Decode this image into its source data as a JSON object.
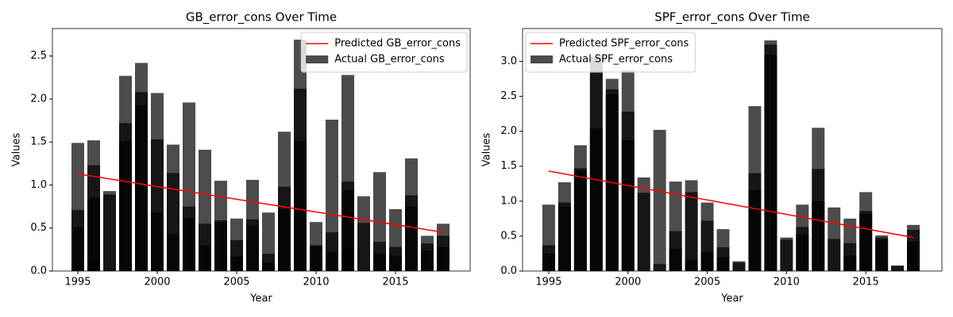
{
  "chart_data": [
    {
      "type": "bar",
      "title": "GB_error_cons Over Time",
      "x_label": "Year",
      "y_label": "Values",
      "xlim": [
        1993.4,
        2019.7
      ],
      "xticks": [
        1995,
        2000,
        2005,
        2010,
        2015
      ],
      "ylim": [
        0,
        2.82
      ],
      "yticks": [
        {
          "value": 0,
          "label": "0.0"
        },
        {
          "value": 0.5,
          "label": "0.5"
        },
        {
          "value": 1,
          "label": "1.0"
        },
        {
          "value": 1.5,
          "label": "1.5"
        },
        {
          "value": 2,
          "label": "2.0"
        },
        {
          "value": 2.5,
          "label": "2.5"
        }
      ],
      "legend": "upper right",
      "series": [
        {
          "name": "Predicted GB_error_cons",
          "type": "line",
          "color": "#ff0000",
          "x": [
            1995,
            2018
          ],
          "values": [
            1.13,
            0.45
          ]
        },
        {
          "name": "Actual GB_error_cons",
          "type": "bar",
          "color": "#000000",
          "opacity": 0.7,
          "x": [
            1995,
            1995,
            1995,
            1996,
            1996,
            1996,
            1996,
            1997,
            1997,
            1998,
            1998,
            1998,
            1999,
            1999,
            1999,
            2000,
            2000,
            2000,
            2001,
            2001,
            2001,
            2002,
            2002,
            2002,
            2003,
            2003,
            2003,
            2004,
            2004,
            2004,
            2005,
            2005,
            2005,
            2006,
            2006,
            2006,
            2007,
            2007,
            2007,
            2008,
            2008,
            2008,
            2009,
            2009,
            2009,
            2010,
            2010,
            2010,
            2011,
            2011,
            2011,
            2012,
            2012,
            2012,
            2012,
            2013,
            2013,
            2014,
            2014,
            2014,
            2015,
            2015,
            2015,
            2016,
            2016,
            2016,
            2017,
            2017,
            2017,
            2018,
            2018,
            2018
          ],
          "values": [
            1.49,
            0.71,
            0.51,
            1.52,
            1.23,
            0.85,
            0.11,
            0.93,
            0.89,
            2.27,
            1.72,
            1.51,
            2.42,
            2.08,
            1.93,
            2.07,
            1.53,
            0.68,
            1.47,
            1.14,
            0.43,
            1.96,
            0.75,
            0.62,
            1.41,
            0.55,
            0.3,
            1.05,
            0.59,
            0.57,
            0.61,
            0.36,
            0.17,
            1.06,
            0.6,
            0.53,
            0.68,
            0.2,
            0.1,
            1.62,
            0.98,
            0.72,
            2.69,
            2.12,
            1.51,
            0.57,
            0.3,
            0.29,
            1.76,
            0.45,
            0.22,
            2.28,
            1.04,
            0.94,
            0.27,
            0.87,
            0.56,
            1.15,
            0.34,
            0.2,
            0.72,
            0.28,
            0.18,
            1.31,
            0.88,
            0.75,
            0.41,
            0.32,
            0.24,
            0.55,
            0.41,
            0.28
          ]
        }
      ]
    },
    {
      "type": "bar",
      "title": "SPF_error_cons Over Time",
      "x_label": "Year",
      "y_label": "Values",
      "xlim": [
        1993.35,
        2019.8
      ],
      "xticks": [
        1995,
        2000,
        2005,
        2010,
        2015
      ],
      "ylim": [
        0,
        3.47
      ],
      "yticks": [
        {
          "value": 0,
          "label": "0.0"
        },
        {
          "value": 0.5,
          "label": "0.5"
        },
        {
          "value": 1,
          "label": "1.0"
        },
        {
          "value": 1.5,
          "label": "1.5"
        },
        {
          "value": 2,
          "label": "2.0"
        },
        {
          "value": 2.5,
          "label": "2.5"
        },
        {
          "value": 3,
          "label": "3.0"
        }
      ],
      "legend": "upper left",
      "series": [
        {
          "name": "Predicted SPF_error_cons",
          "type": "line",
          "color": "#ff0000",
          "x": [
            1995,
            2018
          ],
          "values": [
            1.43,
            0.48
          ]
        },
        {
          "name": "Actual SPF_error_cons",
          "type": "bar",
          "color": "#000000",
          "opacity": 0.7,
          "x": [
            1995,
            1995,
            1995,
            1996,
            1996,
            1996,
            1997,
            1997,
            1997,
            1998,
            1998,
            1998,
            1999,
            1999,
            1999,
            2000,
            2000,
            2000,
            2001,
            2001,
            2002,
            2002,
            2003,
            2003,
            2003,
            2004,
            2004,
            2004,
            2005,
            2005,
            2005,
            2006,
            2006,
            2006,
            2007,
            2007,
            2008,
            2008,
            2008,
            2009,
            2009,
            2009,
            2010,
            2010,
            2011,
            2011,
            2011,
            2012,
            2012,
            2012,
            2013,
            2013,
            2014,
            2014,
            2014,
            2015,
            2015,
            2015,
            2016,
            2016,
            2016,
            2017,
            2017,
            2018,
            2018,
            2018
          ],
          "values": [
            0.95,
            0.37,
            0.25,
            1.27,
            0.98,
            0.92,
            1.8,
            1.47,
            1.44,
            3.07,
            2.87,
            2.04,
            2.75,
            2.6,
            2.53,
            2.87,
            2.28,
            1.87,
            1.34,
            1.12,
            2.02,
            0.1,
            1.28,
            0.57,
            0.32,
            1.3,
            1.13,
            0.16,
            0.98,
            0.72,
            0.27,
            0.6,
            0.34,
            0.2,
            0.14,
            0.12,
            2.36,
            1.4,
            1.16,
            3.3,
            3.24,
            3.09,
            0.48,
            0.45,
            0.95,
            0.63,
            0.53,
            2.05,
            1.46,
            1.0,
            0.91,
            0.46,
            0.75,
            0.4,
            0.22,
            1.13,
            0.86,
            0.82,
            0.51,
            0.48,
            0.45,
            0.08,
            0.07,
            0.66,
            0.59,
            0.42
          ]
        }
      ]
    }
  ]
}
